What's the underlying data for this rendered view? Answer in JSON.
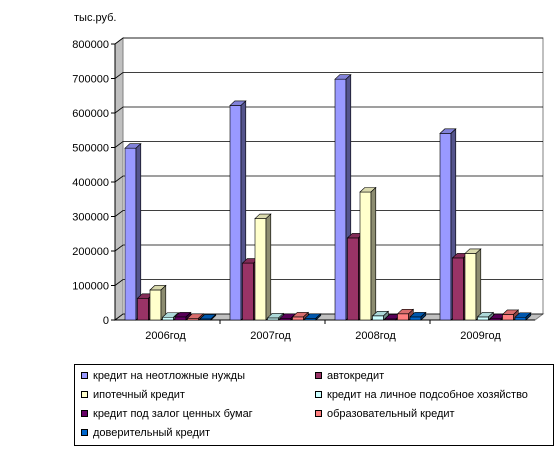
{
  "chart_data": {
    "type": "bar",
    "y_unit": "тыс.руб.",
    "categories": [
      "2006год",
      "2007год",
      "2008год",
      "2009год"
    ],
    "ylim": [
      0,
      800000
    ],
    "y_ticks": [
      "0",
      "100000",
      "200000",
      "300000",
      "400000",
      "500000",
      "600000",
      "700000",
      "800000"
    ],
    "grid": true,
    "three_d": true,
    "legend_position": "bottom",
    "series": [
      {
        "name": "кредит на неотложные нужды",
        "color": "#9999FF",
        "values": [
          498000,
          622000,
          698000,
          541000
        ]
      },
      {
        "name": "автокредит",
        "color": "#993366",
        "values": [
          63000,
          165000,
          238000,
          180000
        ]
      },
      {
        "name": "ипотечный кредит",
        "color": "#FFFFCC",
        "values": [
          87000,
          294000,
          371000,
          193000
        ]
      },
      {
        "name": "кредит на личное подсобное хозяйство",
        "color": "#CCFFFF",
        "values": [
          8000,
          6000,
          12000,
          9000
        ]
      },
      {
        "name": "кредит под залог ценных бумаг",
        "color": "#660066",
        "values": [
          9000,
          5000,
          3000,
          4000
        ]
      },
      {
        "name": "образовательный кредит",
        "color": "#FF8080",
        "values": [
          5000,
          9000,
          18000,
          16000
        ]
      },
      {
        "name": "доверительный кредит",
        "color": "#0066CC",
        "values": [
          3000,
          5000,
          9000,
          8000
        ]
      }
    ]
  }
}
